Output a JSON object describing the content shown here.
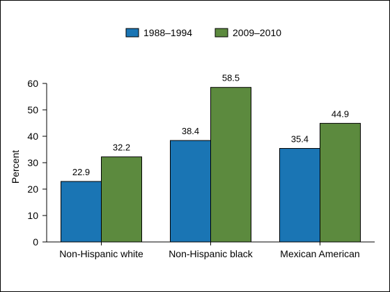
{
  "chart_data": {
    "type": "bar",
    "categories": [
      "Non-Hispanic white",
      "Non-Hispanic black",
      "Mexican American"
    ],
    "series": [
      {
        "name": "1988–1994",
        "values": [
          22.9,
          38.4,
          35.4
        ],
        "color": "#1a75b4"
      },
      {
        "name": "2009–2010",
        "values": [
          32.2,
          58.5,
          44.9
        ],
        "color": "#5c8a3e"
      }
    ],
    "value_labels": [
      [
        "22.9",
        "38.4",
        "35.4"
      ],
      [
        "32.2",
        "58.5",
        "44.9"
      ]
    ],
    "ylabel": "Percent",
    "xlabel": "",
    "ylim": [
      0,
      60
    ],
    "yticks": [
      0,
      10,
      20,
      30,
      40,
      50,
      60
    ],
    "grid": false,
    "legend_position": "top-center"
  }
}
